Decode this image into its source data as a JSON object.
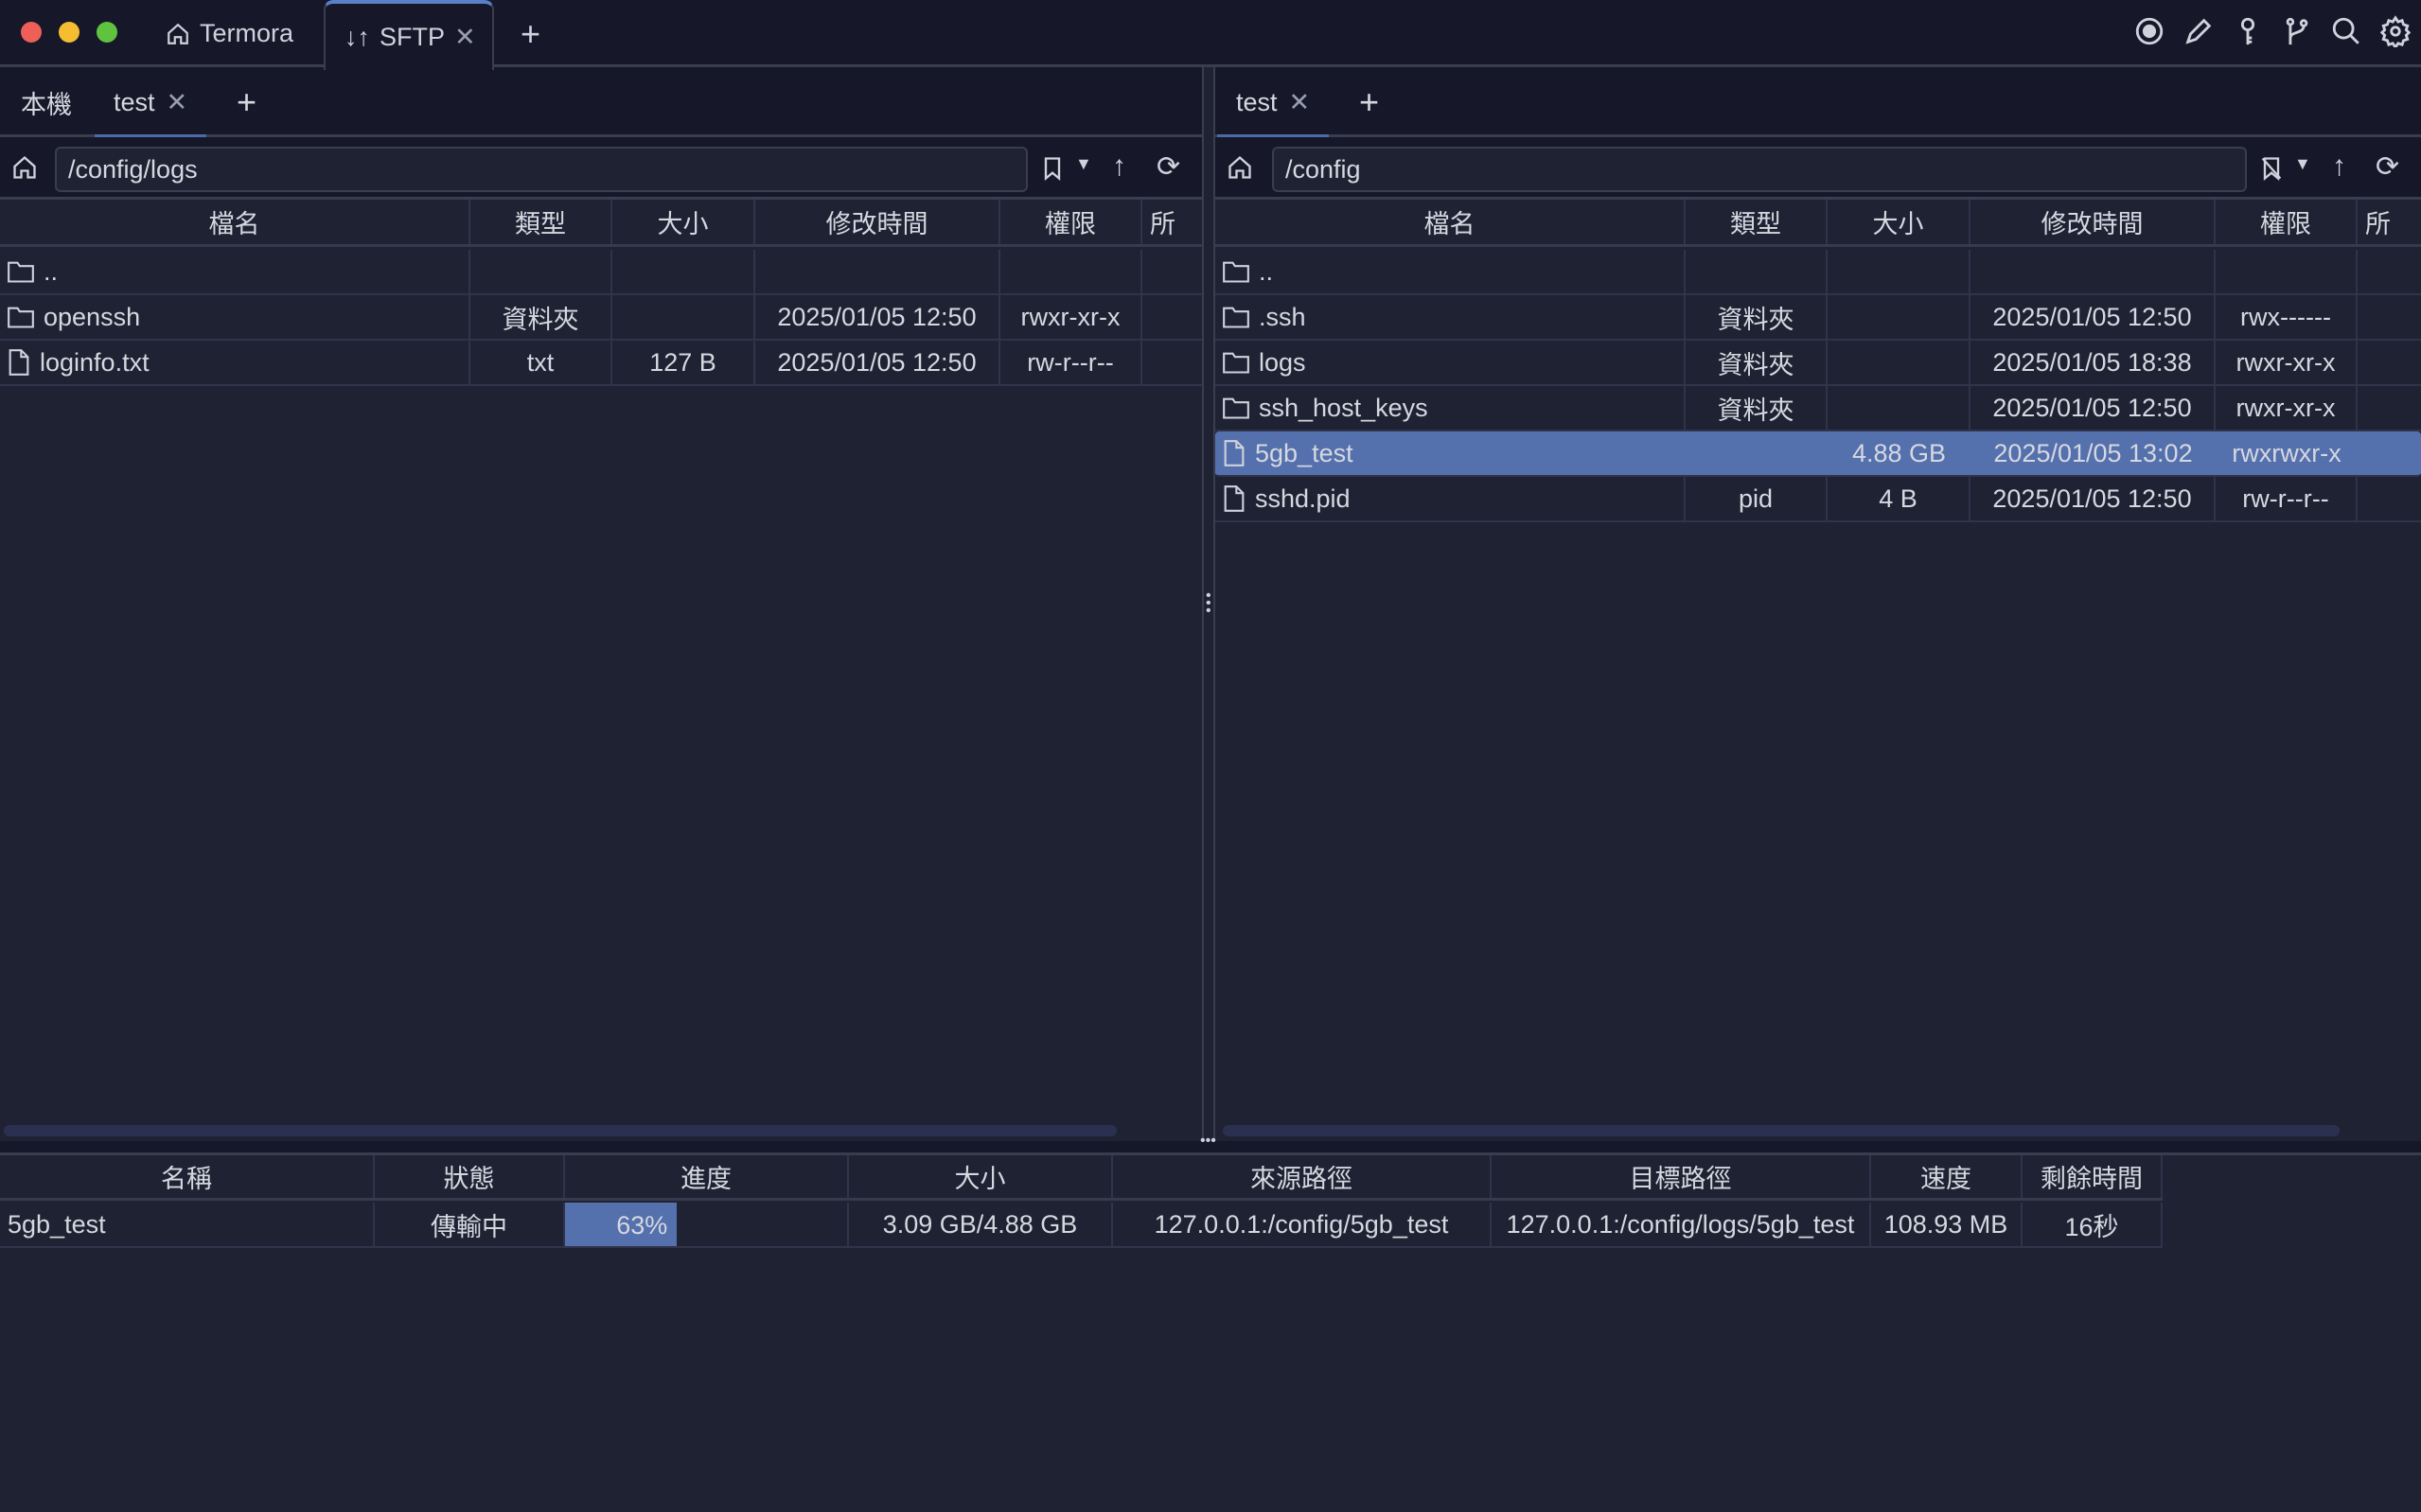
{
  "window": {
    "traffic_colors": [
      "#ee5f57",
      "#f5bd2f",
      "#5fc33f"
    ]
  },
  "tabs": [
    {
      "label": "Termora",
      "icon": "home-icon"
    },
    {
      "label": "SFTP",
      "icon": "transfer-arrows-icon",
      "active": true
    }
  ],
  "toolbar_icons": [
    "record-icon",
    "pencil-icon",
    "key-icon",
    "git-branch-icon",
    "search-icon",
    "gear-icon"
  ],
  "columns": [
    "檔名",
    "類型",
    "大小",
    "修改時間",
    "權限",
    "所"
  ],
  "left": {
    "tabs": [
      "本機",
      "test"
    ],
    "path": "/config/logs",
    "rows": [
      {
        "name": "..",
        "type": "",
        "size": "",
        "mtime": "",
        "perm": "",
        "icon": "folder"
      },
      {
        "name": "openssh",
        "type": "資料夾",
        "size": "",
        "mtime": "2025/01/05 12:50",
        "perm": "rwxr-xr-x",
        "icon": "folder"
      },
      {
        "name": "loginfo.txt",
        "type": "txt",
        "size": "127 B",
        "mtime": "2025/01/05 12:50",
        "perm": "rw-r--r--",
        "icon": "file"
      }
    ]
  },
  "right": {
    "tabs": [
      "test"
    ],
    "path": "/config",
    "rows": [
      {
        "name": "..",
        "type": "",
        "size": "",
        "mtime": "",
        "perm": "",
        "icon": "folder"
      },
      {
        "name": ".ssh",
        "type": "資料夾",
        "size": "",
        "mtime": "2025/01/05 12:50",
        "perm": "rwx------",
        "icon": "folder"
      },
      {
        "name": "logs",
        "type": "資料夾",
        "size": "",
        "mtime": "2025/01/05 18:38",
        "perm": "rwxr-xr-x",
        "icon": "folder"
      },
      {
        "name": "ssh_host_keys",
        "type": "資料夾",
        "size": "",
        "mtime": "2025/01/05 12:50",
        "perm": "rwxr-xr-x",
        "icon": "folder"
      },
      {
        "name": "5gb_test",
        "type": "",
        "size": "4.88 GB",
        "mtime": "2025/01/05 13:02",
        "perm": "rwxrwxr-x",
        "icon": "file",
        "selected": true
      },
      {
        "name": "sshd.pid",
        "type": "pid",
        "size": "4 B",
        "mtime": "2025/01/05 12:50",
        "perm": "rw-r--r--",
        "icon": "file"
      }
    ]
  },
  "transfer": {
    "columns": [
      "名稱",
      "狀態",
      "進度",
      "大小",
      "來源路徑",
      "目標路徑",
      "速度",
      "剩餘時間"
    ],
    "rows": [
      {
        "name": "5gb_test",
        "status": "傳輸中",
        "progress": 63,
        "progress_label": "63%",
        "size": "3.09 GB/4.88 GB",
        "source": "127.0.0.1:/config/5gb_test",
        "target": "127.0.0.1:/config/logs/5gb_test",
        "speed": "108.93 MB",
        "remaining": "16秒"
      }
    ]
  },
  "colors": {
    "accent": "#5470ad",
    "background": "#1f2233",
    "titlebar": "#161829"
  }
}
